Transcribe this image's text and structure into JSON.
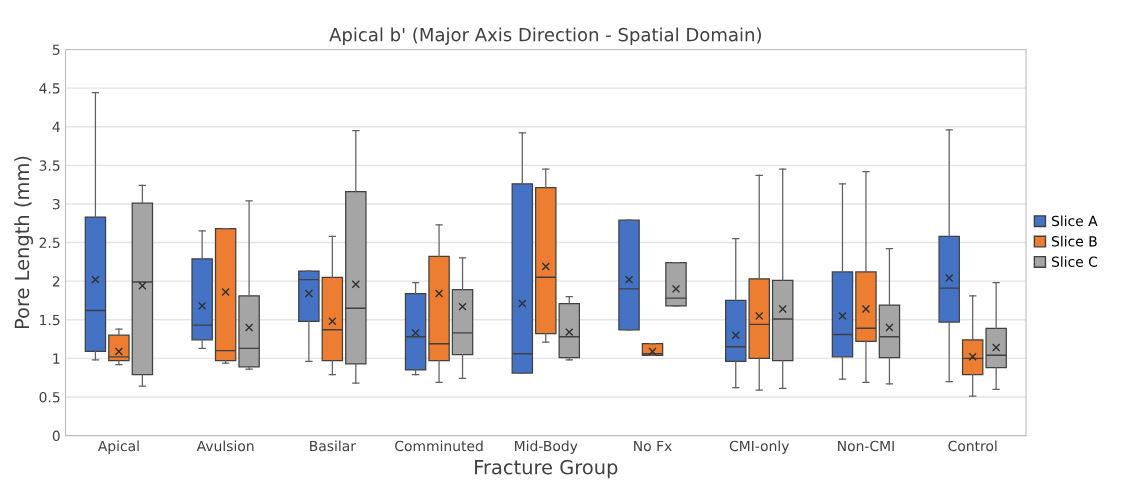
{
  "chart_data": {
    "type": "box",
    "title": "Apical b' (Major Axis Direction - Spatial Domain)",
    "xlabel": "Fracture Group",
    "ylabel": "Pore Length (mm)",
    "categories": [
      "Apical",
      "Avulsion",
      "Basilar",
      "Comminuted",
      "Mid-Body",
      "No Fx",
      "CMI-only",
      "Non-CMI",
      "Control"
    ],
    "ylim": [
      0,
      5
    ],
    "yticks": [
      0,
      0.5,
      1,
      1.5,
      2,
      2.5,
      3,
      3.5,
      4,
      4.5,
      5
    ],
    "grid": "y",
    "legend": "right",
    "marker": "cross",
    "series": [
      {
        "name": "Slice A",
        "color": "#4472c4",
        "boxes": [
          {
            "low": 0.98,
            "q1": 1.09,
            "median": 1.62,
            "q3": 2.83,
            "high": 4.44,
            "mean": 2.02
          },
          {
            "low": 1.13,
            "q1": 1.24,
            "median": 1.43,
            "q3": 2.29,
            "high": 2.65,
            "mean": 1.68
          },
          {
            "low": 0.96,
            "q1": 1.48,
            "median": 2.02,
            "q3": 2.13,
            "high": 2.13,
            "mean": 1.84
          },
          {
            "low": 0.79,
            "q1": 0.85,
            "median": 1.28,
            "q3": 1.84,
            "high": 1.98,
            "mean": 1.33
          },
          {
            "low": 0.81,
            "q1": 0.81,
            "median": 1.06,
            "q3": 3.26,
            "high": 3.92,
            "mean": 1.71
          },
          {
            "low": 1.37,
            "q1": 1.37,
            "median": 1.9,
            "q3": 2.79,
            "high": 2.79,
            "mean": 2.02
          },
          {
            "low": 0.62,
            "q1": 0.96,
            "median": 1.15,
            "q3": 1.75,
            "high": 2.55,
            "mean": 1.3
          },
          {
            "low": 0.73,
            "q1": 1.02,
            "median": 1.31,
            "q3": 2.12,
            "high": 3.26,
            "mean": 1.55
          },
          {
            "low": 0.7,
            "q1": 1.47,
            "median": 1.91,
            "q3": 2.58,
            "high": 3.96,
            "mean": 2.04
          }
        ]
      },
      {
        "name": "Slice B",
        "color": "#ed7d31",
        "boxes": [
          {
            "low": 0.92,
            "q1": 0.97,
            "median": 1.02,
            "q3": 1.3,
            "high": 1.38,
            "mean": 1.09
          },
          {
            "low": 0.94,
            "q1": 0.97,
            "median": 1.1,
            "q3": 2.68,
            "high": 2.68,
            "mean": 1.86
          },
          {
            "low": 0.79,
            "q1": 0.97,
            "median": 1.37,
            "q3": 2.05,
            "high": 2.58,
            "mean": 1.48
          },
          {
            "low": 0.69,
            "q1": 0.97,
            "median": 1.19,
            "q3": 2.32,
            "high": 2.73,
            "mean": 1.84
          },
          {
            "low": 1.21,
            "q1": 1.32,
            "median": 2.05,
            "q3": 3.21,
            "high": 3.45,
            "mean": 2.19
          },
          {
            "low": 1.04,
            "q1": 1.04,
            "median": 1.06,
            "q3": 1.19,
            "high": 1.19,
            "mean": 1.09
          },
          {
            "low": 0.59,
            "q1": 1.0,
            "median": 1.44,
            "q3": 2.03,
            "high": 3.37,
            "mean": 1.55
          },
          {
            "low": 0.69,
            "q1": 1.22,
            "median": 1.39,
            "q3": 2.12,
            "high": 3.42,
            "mean": 1.64
          },
          {
            "low": 0.51,
            "q1": 0.79,
            "median": 1.0,
            "q3": 1.24,
            "high": 1.81,
            "mean": 1.02
          }
        ]
      },
      {
        "name": "Slice C",
        "color": "#a5a5a5",
        "boxes": [
          {
            "low": 0.64,
            "q1": 0.79,
            "median": 1.99,
            "q3": 3.01,
            "high": 3.24,
            "mean": 1.94
          },
          {
            "low": 0.86,
            "q1": 0.89,
            "median": 1.13,
            "q3": 1.81,
            "high": 3.04,
            "mean": 1.4
          },
          {
            "low": 0.68,
            "q1": 0.93,
            "median": 1.65,
            "q3": 3.16,
            "high": 3.95,
            "mean": 1.96
          },
          {
            "low": 0.74,
            "q1": 1.05,
            "median": 1.33,
            "q3": 1.89,
            "high": 2.3,
            "mean": 1.67
          },
          {
            "low": 0.98,
            "q1": 1.01,
            "median": 1.28,
            "q3": 1.71,
            "high": 1.8,
            "mean": 1.34
          },
          {
            "low": 1.68,
            "q1": 1.68,
            "median": 1.78,
            "q3": 2.24,
            "high": 2.24,
            "mean": 1.9
          },
          {
            "low": 0.61,
            "q1": 0.97,
            "median": 1.51,
            "q3": 2.01,
            "high": 3.45,
            "mean": 1.64
          },
          {
            "low": 0.67,
            "q1": 1.01,
            "median": 1.28,
            "q3": 1.69,
            "high": 2.42,
            "mean": 1.4
          },
          {
            "low": 0.6,
            "q1": 0.88,
            "median": 1.04,
            "q3": 1.39,
            "high": 1.98,
            "mean": 1.14
          }
        ]
      }
    ]
  }
}
